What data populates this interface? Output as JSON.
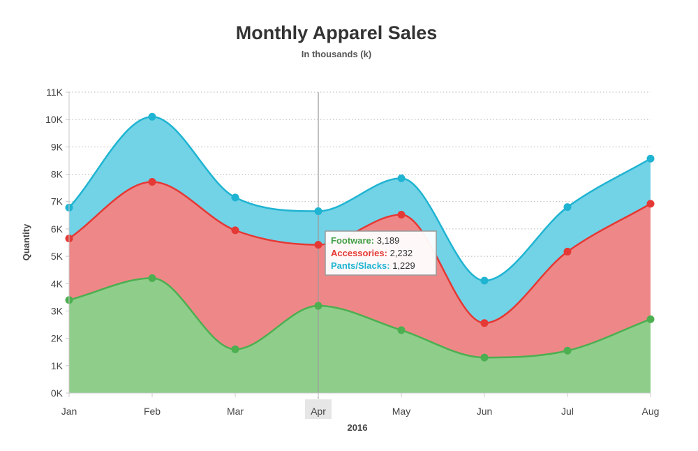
{
  "chart_data": {
    "type": "area",
    "stacked": true,
    "title": "Monthly Apparel Sales",
    "subtitle": "In thousands (k)",
    "xlabel": "2016",
    "ylabel": "Quantity",
    "categories": [
      "Jan",
      "Feb",
      "Mar",
      "Apr",
      "May",
      "Jun",
      "Jul",
      "Aug"
    ],
    "ylim": [
      0,
      11000
    ],
    "yticks": [
      0,
      1000,
      2000,
      3000,
      4000,
      5000,
      6000,
      7000,
      8000,
      9000,
      10000,
      11000
    ],
    "ytick_labels": [
      "0K",
      "1K",
      "2K",
      "3K",
      "4K",
      "5K",
      "6K",
      "7K",
      "8K",
      "9K",
      "10K",
      "11K"
    ],
    "grid": true,
    "series": [
      {
        "name": "Footware",
        "color": "#4caf50",
        "fill": "#8fcd8b",
        "values": [
          3400,
          4200,
          1600,
          3189,
          2300,
          1300,
          1550,
          2700
        ]
      },
      {
        "name": "Accessories",
        "color": "#e53935",
        "fill": "#ee8888",
        "values": [
          2250,
          3520,
          4350,
          2232,
          4220,
          1260,
          3620,
          4220
        ]
      },
      {
        "name": "Pants/Slacks",
        "color": "#1fb4d2",
        "fill": "#72d2e6",
        "values": [
          1130,
          2380,
          1200,
          1229,
          1330,
          1550,
          1630,
          1650
        ]
      }
    ],
    "crosshair_category": "Apr",
    "tooltip": {
      "entries": [
        {
          "name": "Footware",
          "value": "3,189",
          "color": "#43a047"
        },
        {
          "name": "Accessories",
          "value": "2,232",
          "color": "#e53935"
        },
        {
          "name": "Pants/Slacks",
          "value": "1,229",
          "color": "#1fb4d2"
        }
      ]
    }
  }
}
